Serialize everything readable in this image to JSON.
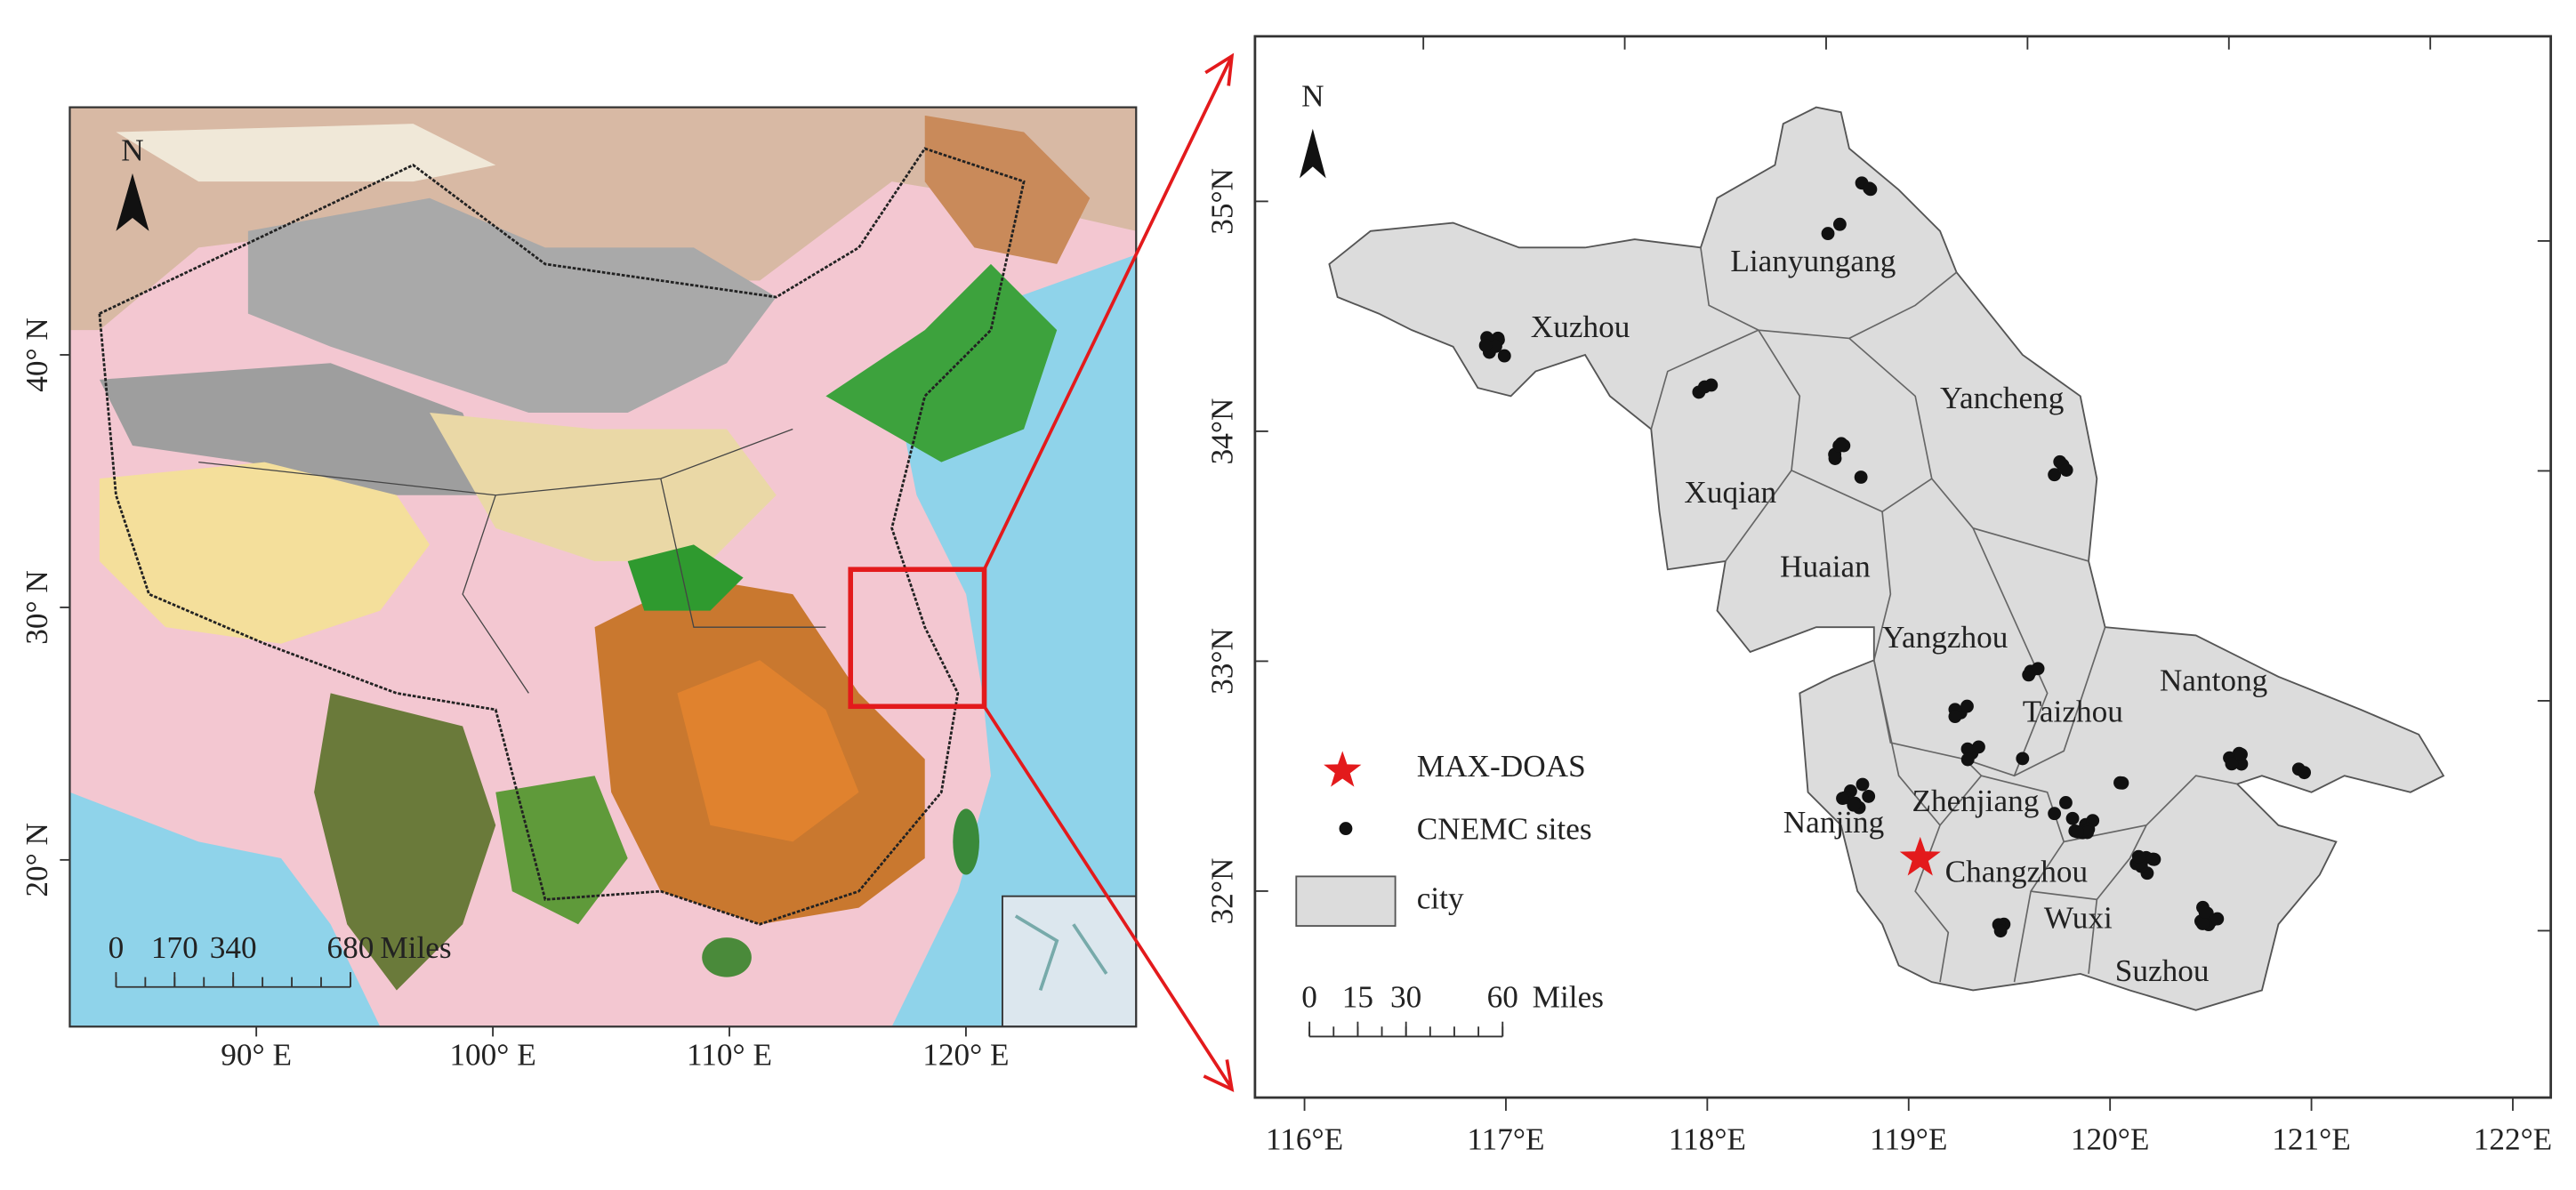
{
  "left_map": {
    "north": "N",
    "yticks": [
      {
        "value": 40,
        "label": "40° N"
      },
      {
        "value": 30,
        "label": "30° N"
      },
      {
        "value": 20,
        "label": "20° N"
      }
    ],
    "xticks": [
      {
        "value": 90,
        "label": "90° E"
      },
      {
        "value": 100,
        "label": "100° E"
      },
      {
        "value": 110,
        "label": "110° E"
      },
      {
        "value": 120,
        "label": "120° E"
      }
    ],
    "scale_bar": {
      "ticks": [
        0,
        170,
        340,
        680
      ],
      "unit": "Miles"
    }
  },
  "right_map": {
    "north": "N",
    "yticks": [
      {
        "value": 35,
        "label": "35°N"
      },
      {
        "value": 34,
        "label": "34°N"
      },
      {
        "value": 33,
        "label": "33°N"
      },
      {
        "value": 32,
        "label": "32°N"
      }
    ],
    "xticks": [
      {
        "value": 116,
        "label": "116°E"
      },
      {
        "value": 117,
        "label": "117°E"
      },
      {
        "value": 118,
        "label": "118°E"
      },
      {
        "value": 119,
        "label": "119°E"
      },
      {
        "value": 120,
        "label": "120°E"
      },
      {
        "value": 121,
        "label": "121°E"
      },
      {
        "value": 122,
        "label": "122°E"
      }
    ],
    "cities": [
      "Lianyungang",
      "Xuzhou",
      "Yancheng",
      "Xuqian",
      "Huaian",
      "Yangzhou",
      "Nantong",
      "Taizhou",
      "Nanjing",
      "Zhenjiang",
      "Changzhou",
      "Wuxi",
      "Suzhou"
    ],
    "legend": [
      "MAX-DOAS",
      "CNEMC sites",
      "city"
    ],
    "scale_bar": {
      "ticks": [
        0,
        15,
        30,
        60
      ],
      "unit": "Miles"
    }
  }
}
